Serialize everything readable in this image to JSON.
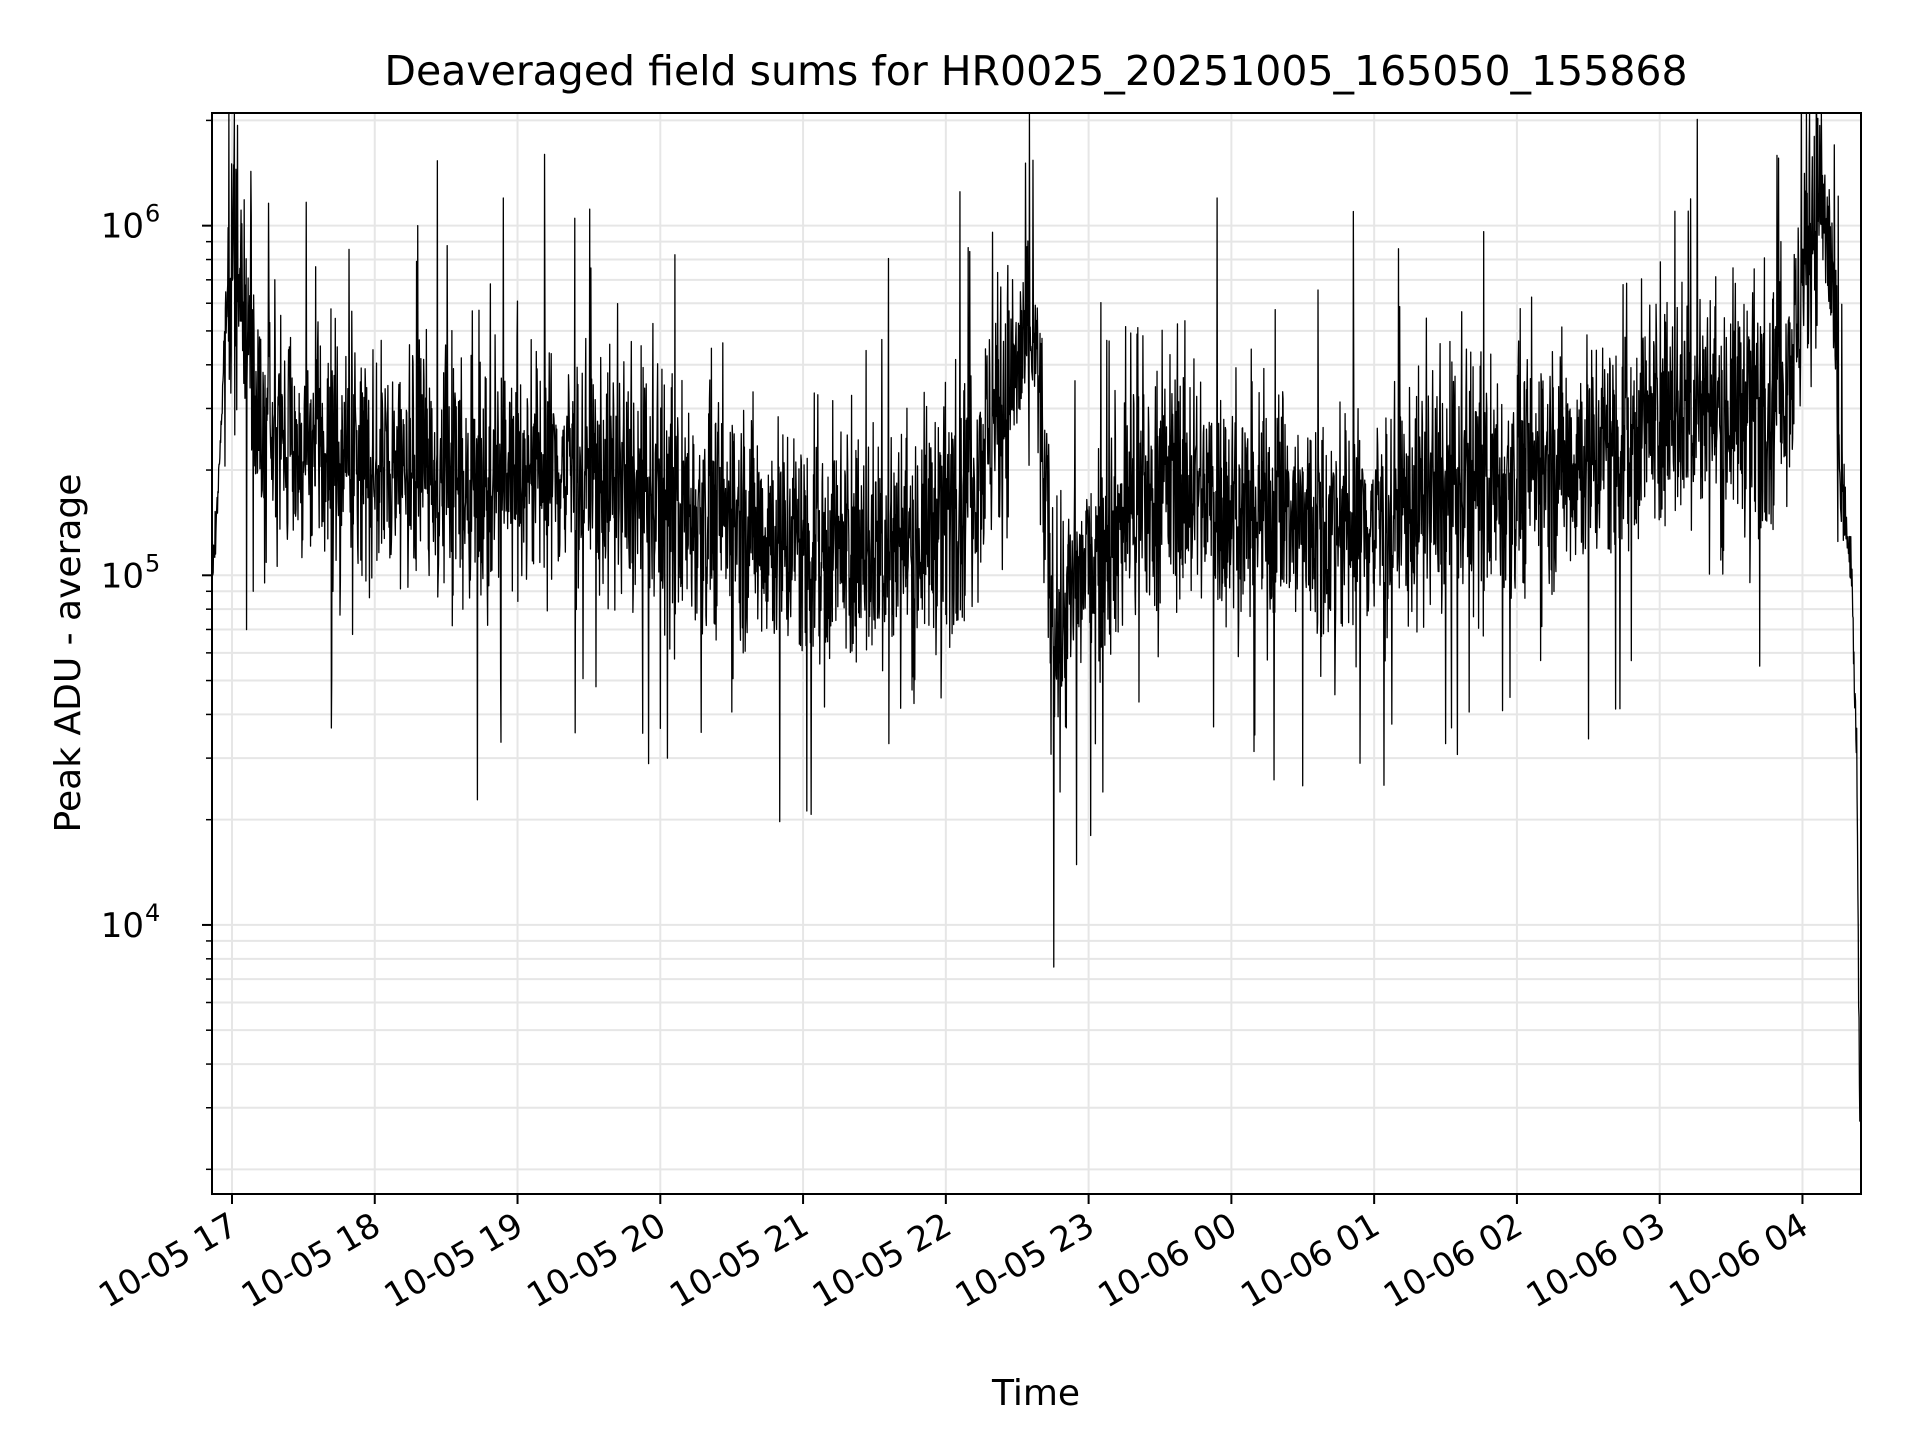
{
  "chart_data": {
    "type": "line",
    "title": "Deaveraged field sums for HR0025_20251005_165050_155868",
    "xlabel": "Time",
    "ylabel": "Peak ADU - average",
    "yscale": "log",
    "ylim": [
      1700,
      2100000
    ],
    "xlim_hours": [
      16.86,
      28.41
    ],
    "grid": true,
    "line_color": "#000000",
    "grid_color": "#e6e6e6",
    "x_ticks": [
      {
        "hour": 17,
        "label": "10-05 17"
      },
      {
        "hour": 18,
        "label": "10-05 18"
      },
      {
        "hour": 19,
        "label": "10-05 19"
      },
      {
        "hour": 20,
        "label": "10-05 20"
      },
      {
        "hour": 21,
        "label": "10-05 21"
      },
      {
        "hour": 22,
        "label": "10-05 22"
      },
      {
        "hour": 23,
        "label": "10-05 23"
      },
      {
        "hour": 24,
        "label": "10-06 00"
      },
      {
        "hour": 25,
        "label": "10-06 01"
      },
      {
        "hour": 26,
        "label": "10-06 02"
      },
      {
        "hour": 27,
        "label": "10-06 03"
      },
      {
        "hour": 28,
        "label": "10-06 04"
      }
    ],
    "y_ticks": [
      {
        "value": 10000,
        "base": "10",
        "exp": "4"
      },
      {
        "value": 100000,
        "base": "10",
        "exp": "5"
      },
      {
        "value": 1000000,
        "base": "10",
        "exp": "6"
      }
    ],
    "series": [
      {
        "name": "HR0025_20251005_165050_155868",
        "x_unit": "hours since 10-05 00:00",
        "anchor_points": [
          [
            16.86,
            105000
          ],
          [
            16.88,
            120000
          ],
          [
            16.92,
            250000
          ],
          [
            16.96,
            550000
          ],
          [
            17.0,
            900000
          ],
          [
            17.04,
            780000
          ],
          [
            17.08,
            600000
          ],
          [
            17.12,
            420000
          ],
          [
            17.2,
            280000
          ],
          [
            17.3,
            250000
          ],
          [
            17.4,
            230000
          ],
          [
            17.6,
            220000
          ],
          [
            17.8,
            215000
          ],
          [
            18.0,
            210000
          ],
          [
            18.2,
            205000
          ],
          [
            18.4,
            200000
          ],
          [
            18.6,
            195000
          ],
          [
            18.8,
            200000
          ],
          [
            19.0,
            210000
          ],
          [
            19.2,
            200000
          ],
          [
            19.4,
            210000
          ],
          [
            19.6,
            190000
          ],
          [
            19.8,
            170000
          ],
          [
            20.0,
            160000
          ],
          [
            20.2,
            155000
          ],
          [
            20.4,
            150000
          ],
          [
            20.6,
            140000
          ],
          [
            20.8,
            130000
          ],
          [
            21.0,
            125000
          ],
          [
            21.2,
            120000
          ],
          [
            21.4,
            115000
          ],
          [
            21.6,
            120000
          ],
          [
            21.8,
            130000
          ],
          [
            22.0,
            150000
          ],
          [
            22.2,
            200000
          ],
          [
            22.35,
            280000
          ],
          [
            22.5,
            400000
          ],
          [
            22.6,
            500000
          ],
          [
            22.65,
            350000
          ],
          [
            22.7,
            150000
          ],
          [
            22.75,
            70000
          ],
          [
            22.85,
            80000
          ],
          [
            23.0,
            110000
          ],
          [
            23.2,
            140000
          ],
          [
            23.4,
            170000
          ],
          [
            23.6,
            190000
          ],
          [
            23.8,
            170000
          ],
          [
            24.0,
            155000
          ],
          [
            24.2,
            150000
          ],
          [
            24.4,
            145000
          ],
          [
            24.6,
            140000
          ],
          [
            24.8,
            135000
          ],
          [
            25.0,
            145000
          ],
          [
            25.2,
            155000
          ],
          [
            25.4,
            165000
          ],
          [
            25.6,
            175000
          ],
          [
            25.8,
            185000
          ],
          [
            26.0,
            195000
          ],
          [
            26.2,
            205000
          ],
          [
            26.4,
            215000
          ],
          [
            26.6,
            230000
          ],
          [
            26.8,
            260000
          ],
          [
            27.0,
            280000
          ],
          [
            27.2,
            300000
          ],
          [
            27.4,
            300000
          ],
          [
            27.6,
            310000
          ],
          [
            27.8,
            330000
          ],
          [
            27.95,
            450000
          ],
          [
            28.05,
            1000000
          ],
          [
            28.12,
            1300000
          ],
          [
            28.18,
            900000
          ],
          [
            28.22,
            550000
          ],
          [
            28.26,
            220000
          ],
          [
            28.3,
            130000
          ],
          [
            28.34,
            110000
          ],
          [
            28.38,
            30000
          ],
          [
            28.4,
            3000
          ]
        ],
        "spikes": [
          [
            17.03,
            1250000
          ],
          [
            17.06,
            870000
          ],
          [
            17.15,
            90000
          ],
          [
            17.3,
            700000
          ],
          [
            17.7,
            52000
          ],
          [
            18.3,
            1000000
          ],
          [
            18.9,
            1200000
          ],
          [
            19.4,
            1050000
          ],
          [
            19.55,
            48000
          ],
          [
            20.05,
            30000
          ],
          [
            21.15,
            42000
          ],
          [
            21.6,
            33000
          ],
          [
            22.1,
            1250000
          ],
          [
            22.8,
            24000
          ],
          [
            23.1,
            24000
          ],
          [
            23.9,
            1200000
          ],
          [
            24.3,
            26000
          ],
          [
            24.5,
            25000
          ],
          [
            24.9,
            29000
          ],
          [
            25.5,
            33000
          ],
          [
            25.9,
            41000
          ],
          [
            26.8,
            57000
          ],
          [
            27.2,
            1100000
          ],
          [
            27.7,
            55000
          ],
          [
            27.85,
            900000
          ]
        ]
      }
    ]
  }
}
